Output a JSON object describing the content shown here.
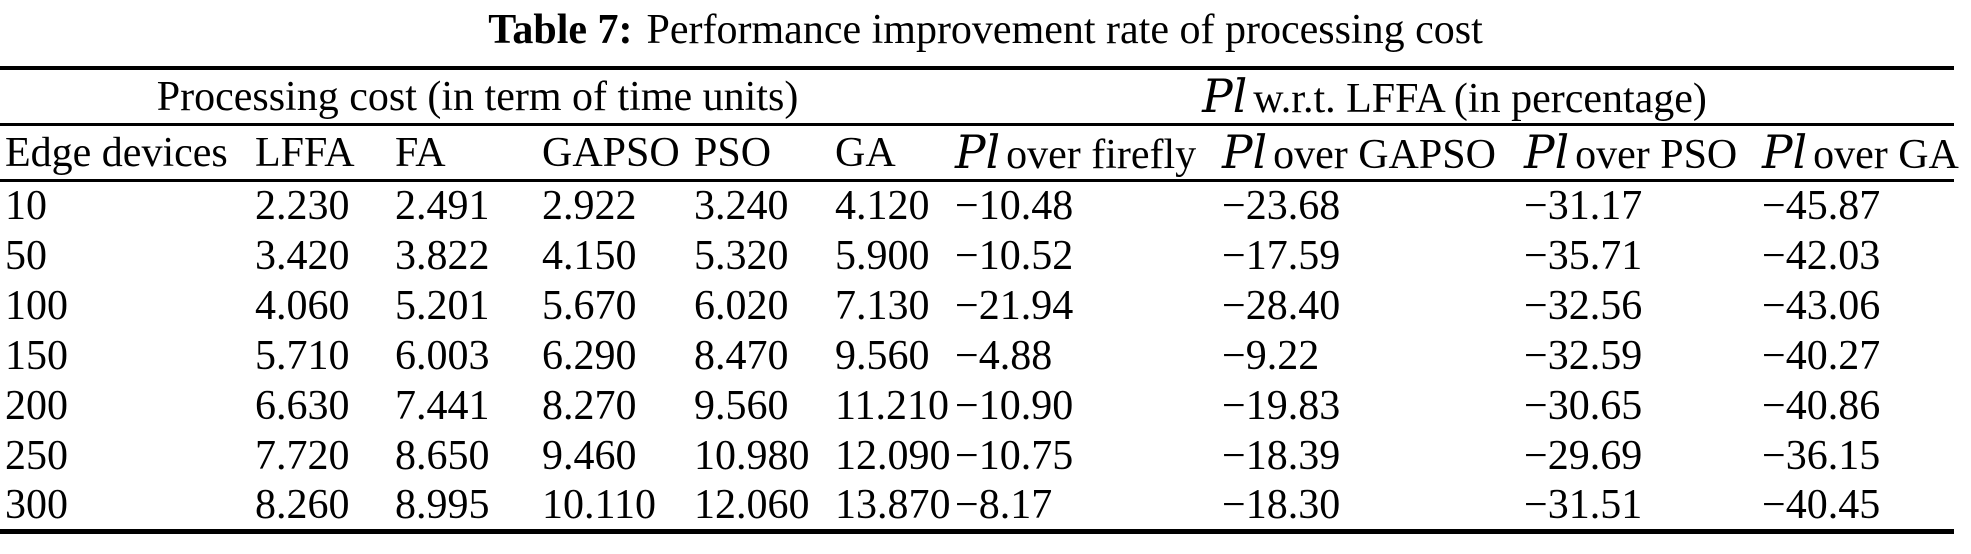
{
  "title": {
    "label": "Table 7:",
    "text": "Performance improvement rate of processing cost"
  },
  "table": {
    "groups": [
      {
        "title": "Processing cost (in term of time units)"
      },
      {
        "symbol": "Pl",
        "title": "w.r.t. LFFA (in percentage)"
      }
    ],
    "columns": [
      {
        "label": "Edge devices"
      },
      {
        "label": "LFFA"
      },
      {
        "label": "FA"
      },
      {
        "label": "GAPSO"
      },
      {
        "label": "PSO"
      },
      {
        "label": "GA"
      },
      {
        "symbol": "Pl",
        "label": "over firefly"
      },
      {
        "symbol": "Pl",
        "label": "over GAPSO"
      },
      {
        "symbol": "Pl",
        "label": "over PSO"
      },
      {
        "symbol": "Pl",
        "label": "over GA"
      }
    ],
    "rows": [
      [
        "10",
        "2.230",
        "2.491",
        "2.922",
        "3.240",
        "4.120",
        "−10.48",
        "−23.68",
        "−31.17",
        "−45.87"
      ],
      [
        "50",
        "3.420",
        "3.822",
        "4.150",
        "5.320",
        "5.900",
        "−10.52",
        "−17.59",
        "−35.71",
        "−42.03"
      ],
      [
        "100",
        "4.060",
        "5.201",
        "5.670",
        "6.020",
        "7.130",
        "−21.94",
        "−28.40",
        "−32.56",
        "−43.06"
      ],
      [
        "150",
        "5.710",
        "6.003",
        "6.290",
        "8.470",
        "9.560",
        "−4.88",
        "−9.22",
        "−32.59",
        "−40.27"
      ],
      [
        "200",
        "6.630",
        "7.441",
        "8.270",
        "9.560",
        "11.210",
        "−10.90",
        "−19.83",
        "−30.65",
        "−40.86"
      ],
      [
        "250",
        "7.720",
        "8.650",
        "9.460",
        "10.980",
        "12.090",
        "−10.75",
        "−18.39",
        "−29.69",
        "−36.15"
      ],
      [
        "300",
        "8.260",
        "8.995",
        "10.110",
        "12.060",
        "13.870",
        "−8.17",
        "−18.30",
        "−31.51",
        "−40.45"
      ]
    ]
  },
  "chart_data": {
    "type": "table",
    "title": "Table 7: Performance improvement rate of processing cost",
    "column_groups": [
      "Processing cost (in term of time units)",
      "Pl w.r.t. LFFA (in percentage)"
    ],
    "headers": [
      "Edge devices",
      "LFFA",
      "FA",
      "GAPSO",
      "PSO",
      "GA",
      "Pl over firefly",
      "Pl over GAPSO",
      "Pl over PSO",
      "Pl over GA"
    ],
    "rows": [
      [
        10,
        2.23,
        2.491,
        2.922,
        3.24,
        4.12,
        -10.48,
        -23.68,
        -31.17,
        -45.87
      ],
      [
        50,
        3.42,
        3.822,
        4.15,
        5.32,
        5.9,
        -10.52,
        -17.59,
        -35.71,
        -42.03
      ],
      [
        100,
        4.06,
        5.201,
        5.67,
        6.02,
        7.13,
        -21.94,
        -28.4,
        -32.56,
        -43.06
      ],
      [
        150,
        5.71,
        6.003,
        6.29,
        8.47,
        9.56,
        -4.88,
        -9.22,
        -32.59,
        -40.27
      ],
      [
        200,
        6.63,
        7.441,
        8.27,
        9.56,
        11.21,
        -10.9,
        -19.83,
        -30.65,
        -40.86
      ],
      [
        250,
        7.72,
        8.65,
        9.46,
        10.98,
        12.09,
        -10.75,
        -18.39,
        -29.69,
        -36.15
      ],
      [
        300,
        8.26,
        8.995,
        10.11,
        12.06,
        13.87,
        -8.17,
        -18.3,
        -31.51,
        -40.45
      ]
    ]
  }
}
